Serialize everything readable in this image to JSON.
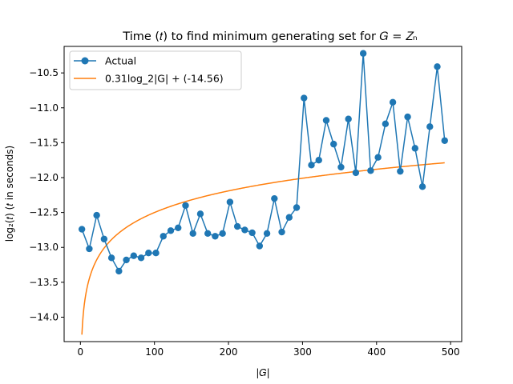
{
  "chart_data": {
    "type": "line",
    "title": "Time (𝑡) to find minimum generating set for 𝐺 = 𝑍ₙ",
    "xlabel": "|𝐺|",
    "ylabel": "log₂(𝑡) (𝑡 in seconds)",
    "xlim": [
      -22,
      515
    ],
    "ylim": [
      -14.35,
      -10.12
    ],
    "xticks": [
      0,
      100,
      200,
      300,
      400,
      500
    ],
    "yticks": [
      -14.0,
      -13.5,
      -13.0,
      -12.5,
      -12.0,
      -11.5,
      -11.0,
      -10.5
    ],
    "xtick_labels": [
      "0",
      "100",
      "200",
      "300",
      "400",
      "500"
    ],
    "ytick_labels": [
      "−14.0",
      "−13.5",
      "−13.0",
      "−12.5",
      "−12.0",
      "−11.5",
      "−11.0",
      "−10.5"
    ],
    "grid": false,
    "legend_position": "top-left",
    "series": [
      {
        "name": "Actual",
        "color": "#1f77b4",
        "marker": "circle",
        "x": [
          2,
          12,
          22,
          32,
          42,
          52,
          62,
          72,
          82,
          92,
          102,
          112,
          122,
          132,
          142,
          152,
          162,
          172,
          182,
          192,
          202,
          212,
          222,
          232,
          242,
          252,
          262,
          272,
          282,
          292,
          302,
          312,
          322,
          332,
          342,
          352,
          362,
          372,
          382,
          392,
          402,
          412,
          422,
          432,
          442,
          452,
          462,
          472,
          482,
          492
        ],
        "y": [
          -12.74,
          -13.02,
          -12.54,
          -12.88,
          -13.15,
          -13.34,
          -13.18,
          -13.12,
          -13.15,
          -13.08,
          -13.08,
          -12.84,
          -12.76,
          -12.72,
          -12.4,
          -12.8,
          -12.52,
          -12.8,
          -12.84,
          -12.8,
          -12.35,
          -12.7,
          -12.75,
          -12.79,
          -12.98,
          -12.8,
          -12.3,
          -12.78,
          -12.57,
          -12.43,
          -10.86,
          -11.82,
          -11.75,
          -11.18,
          -11.52,
          -11.85,
          -11.16,
          -11.93,
          -10.22,
          -11.9,
          -11.71,
          -11.23,
          -10.92,
          -11.91,
          -11.13,
          -11.58,
          -12.13,
          -11.27,
          -10.41,
          -11.47
        ]
      },
      {
        "name": "0.31log_2|G| + (-14.56)",
        "color": "#ff7f0e",
        "marker": "none",
        "fit": {
          "a": 0.31,
          "b": -14.56,
          "x_start": 2,
          "x_end": 492
        }
      }
    ]
  }
}
